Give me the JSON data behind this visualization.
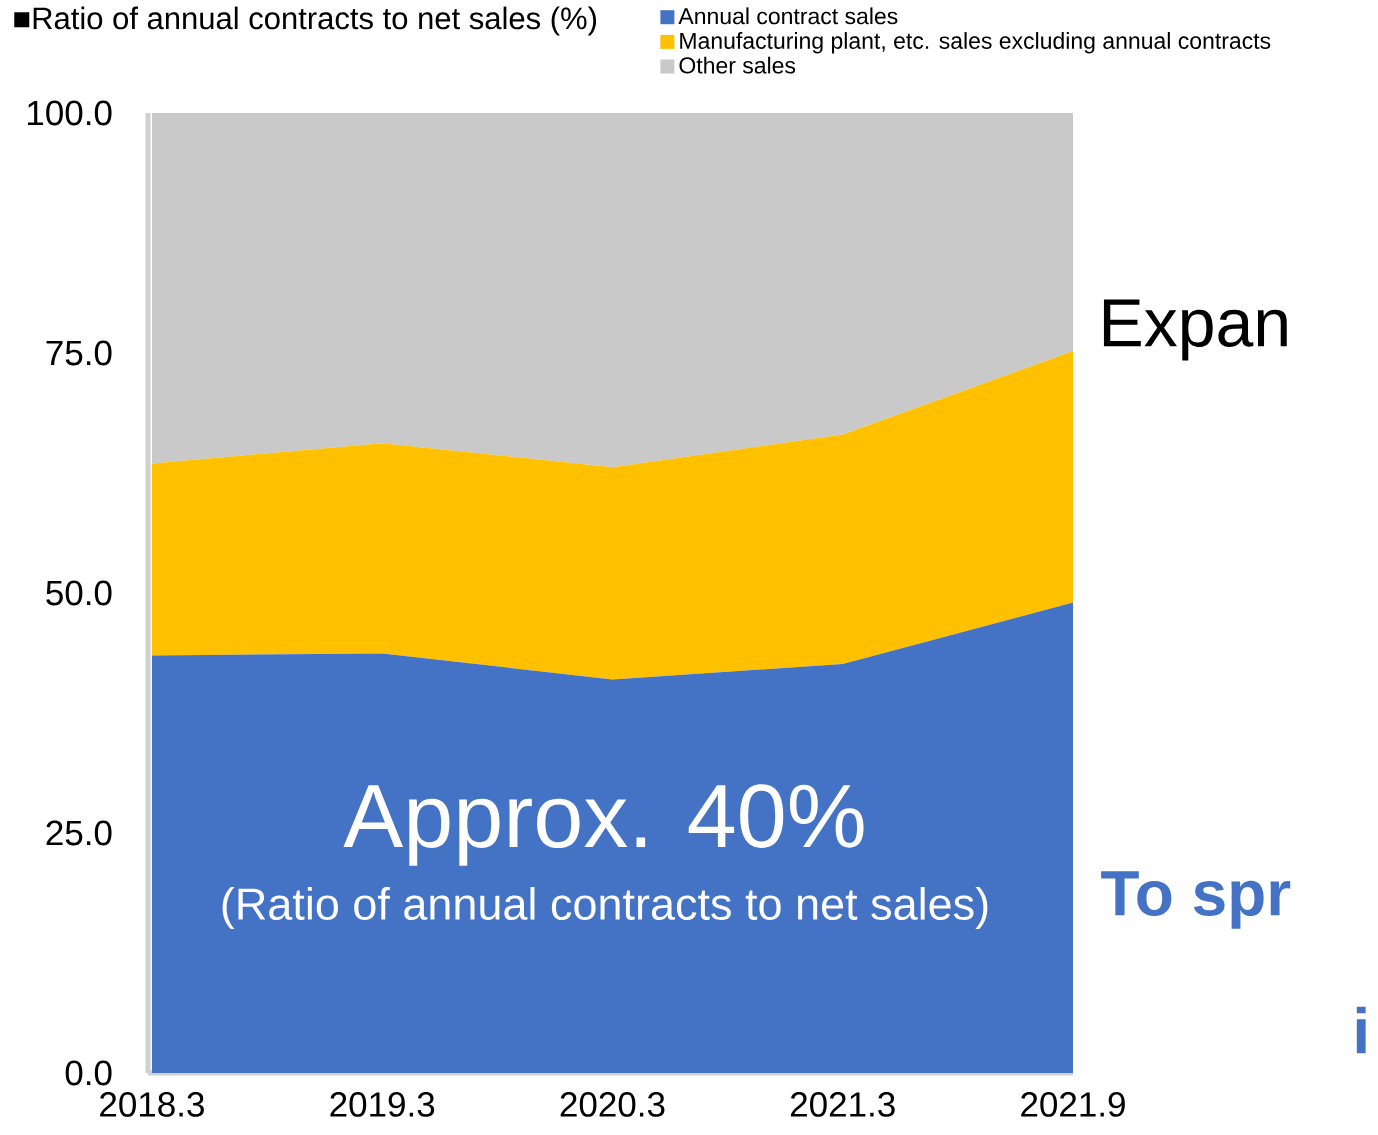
{
  "chart_data": {
    "type": "area",
    "stacked": true,
    "title": "■Ratio of annual contracts to net sales (%)",
    "categories": [
      "2018.3",
      "2019.3",
      "2020.3",
      "2021.3",
      "2021.9"
    ],
    "series": [
      {
        "name": "Annual contract sales",
        "color": "#4472c4",
        "values": [
          43.5,
          43.7,
          41.0,
          42.6,
          49.0
        ]
      },
      {
        "name": "Manufacturing plant, etc. sales excluding annual contracts",
        "color": "#ffc000",
        "values": [
          20.0,
          21.9,
          22.1,
          23.9,
          26.2
        ]
      },
      {
        "name": "Other sales",
        "color": "#c9c9c9",
        "values": [
          36.5,
          34.4,
          36.9,
          33.5,
          24.8
        ]
      }
    ],
    "ylim": [
      0,
      100
    ],
    "yticks": [
      {
        "value": 0,
        "label": "0.0"
      },
      {
        "value": 25,
        "label": "25.0"
      },
      {
        "value": 50,
        "label": "50.0"
      },
      {
        "value": 75,
        "label": "75.0"
      },
      {
        "value": 100,
        "label": "100.0"
      }
    ],
    "legend": "top",
    "annotations": [
      "Approx. 40%",
      "(Ratio of annual contracts to net sales)",
      "Expan",
      "To spr",
      "i"
    ]
  }
}
